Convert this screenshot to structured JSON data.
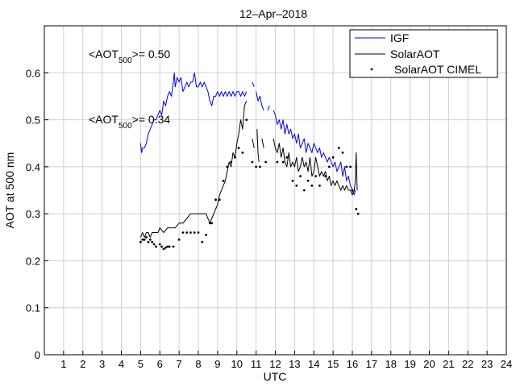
{
  "chart_data": {
    "type": "line",
    "title": "12–Apr–2018",
    "xlabel": "UTC",
    "ylabel": "AOT at 500 nm",
    "xlim": [
      0,
      24
    ],
    "ylim": [
      0,
      0.7
    ],
    "xticks": [
      "1",
      "2",
      "3",
      "4",
      "5",
      "6",
      "7",
      "8",
      "9",
      "10",
      "11",
      "12",
      "13",
      "14",
      "15",
      "16",
      "17",
      "18",
      "19",
      "20",
      "21",
      "22",
      "23",
      "24"
    ],
    "yticks": [
      "0",
      "0.1",
      "0.2",
      "0.3",
      "0.4",
      "0.5",
      "0.6"
    ],
    "grid": true,
    "legend_position": "top-right",
    "annotations": [
      {
        "prefix": "<AOT",
        "sub": "500",
        "suffix": ">= 0.50",
        "color": "#0000ee"
      },
      {
        "prefix": "<AOT",
        "sub": "500",
        "suffix": ">= 0.34",
        "color": "#000000"
      }
    ],
    "series": [
      {
        "name": "IGF",
        "style": "line",
        "color": "#0000dd",
        "segments": [
          [
            [
              5.0,
              0.45
            ],
            [
              5.05,
              0.43
            ],
            [
              5.1,
              0.44
            ],
            [
              5.2,
              0.44
            ],
            [
              5.3,
              0.45
            ],
            [
              5.4,
              0.47
            ],
            [
              5.5,
              0.48
            ],
            [
              5.6,
              0.49
            ],
            [
              5.7,
              0.5
            ],
            [
              5.8,
              0.5
            ],
            [
              5.9,
              0.51
            ],
            [
              6.0,
              0.52
            ],
            [
              6.1,
              0.51
            ],
            [
              6.2,
              0.54
            ],
            [
              6.3,
              0.53
            ],
            [
              6.4,
              0.55
            ],
            [
              6.5,
              0.56
            ],
            [
              6.6,
              0.55
            ],
            [
              6.7,
              0.58
            ],
            [
              6.75,
              0.6
            ],
            [
              6.8,
              0.57
            ],
            [
              6.9,
              0.59
            ],
            [
              7.0,
              0.58
            ],
            [
              7.1,
              0.59
            ],
            [
              7.2,
              0.56
            ],
            [
              7.3,
              0.57
            ],
            [
              7.4,
              0.58
            ],
            [
              7.5,
              0.57
            ],
            [
              7.6,
              0.58
            ],
            [
              7.7,
              0.58
            ],
            [
              7.8,
              0.6
            ],
            [
              7.9,
              0.57
            ],
            [
              8.0,
              0.57
            ],
            [
              8.1,
              0.58
            ],
            [
              8.2,
              0.57
            ],
            [
              8.3,
              0.58
            ],
            [
              8.4,
              0.57
            ],
            [
              8.5,
              0.56
            ],
            [
              8.6,
              0.54
            ],
            [
              8.7,
              0.53
            ],
            [
              8.8,
              0.55
            ],
            [
              8.9,
              0.55
            ],
            [
              9.0,
              0.56
            ],
            [
              9.1,
              0.55
            ],
            [
              9.2,
              0.56
            ],
            [
              9.3,
              0.55
            ],
            [
              9.4,
              0.56
            ],
            [
              9.5,
              0.55
            ],
            [
              9.6,
              0.56
            ],
            [
              9.7,
              0.55
            ],
            [
              9.8,
              0.56
            ],
            [
              9.9,
              0.55
            ],
            [
              10.0,
              0.56
            ],
            [
              10.1,
              0.56
            ],
            [
              10.2,
              0.55
            ],
            [
              10.3,
              0.56
            ],
            [
              10.4,
              0.55
            ],
            [
              10.5,
              0.56
            ]
          ],
          [
            [
              10.8,
              0.58
            ],
            [
              10.9,
              0.57
            ]
          ],
          [
            [
              11.0,
              0.56
            ],
            [
              11.1,
              0.54
            ],
            [
              11.2,
              0.55
            ],
            [
              11.3,
              0.53
            ],
            [
              11.4,
              0.52
            ]
          ],
          [
            [
              11.6,
              0.52
            ],
            [
              11.7,
              0.53
            ]
          ],
          [
            [
              11.9,
              0.52
            ],
            [
              12.0,
              0.51
            ],
            [
              12.1,
              0.49
            ],
            [
              12.2,
              0.5
            ],
            [
              12.3,
              0.48
            ],
            [
              12.4,
              0.5
            ],
            [
              12.5,
              0.47
            ],
            [
              12.6,
              0.49
            ],
            [
              12.7,
              0.47
            ],
            [
              12.8,
              0.48
            ],
            [
              12.9,
              0.46
            ],
            [
              13.0,
              0.47
            ],
            [
              13.1,
              0.45
            ],
            [
              13.2,
              0.47
            ],
            [
              13.3,
              0.44
            ],
            [
              13.4,
              0.45
            ],
            [
              13.5,
              0.46
            ],
            [
              13.6,
              0.43
            ],
            [
              13.7,
              0.45
            ],
            [
              13.8,
              0.44
            ],
            [
              13.9,
              0.43
            ],
            [
              14.0,
              0.45
            ],
            [
              14.1,
              0.44
            ],
            [
              14.2,
              0.43
            ],
            [
              14.3,
              0.44
            ],
            [
              14.4,
              0.42
            ],
            [
              14.5,
              0.43
            ],
            [
              14.6,
              0.42
            ],
            [
              14.7,
              0.41
            ],
            [
              14.8,
              0.42
            ],
            [
              14.9,
              0.41
            ],
            [
              15.0,
              0.4
            ],
            [
              15.1,
              0.41
            ],
            [
              15.2,
              0.39
            ],
            [
              15.3,
              0.4
            ],
            [
              15.4,
              0.41
            ],
            [
              15.5,
              0.38
            ],
            [
              15.6,
              0.4
            ],
            [
              15.7,
              0.37
            ],
            [
              15.8,
              0.38
            ],
            [
              15.9,
              0.36
            ],
            [
              16.0,
              0.35
            ],
            [
              16.1,
              0.34
            ],
            [
              16.15,
              0.35
            ]
          ]
        ]
      },
      {
        "name": "SolarAOT",
        "style": "line",
        "color": "#000000",
        "segments": [
          [
            [
              5.0,
              0.25
            ],
            [
              5.1,
              0.26
            ],
            [
              5.2,
              0.25
            ],
            [
              5.3,
              0.26
            ],
            [
              5.4,
              0.26
            ],
            [
              5.5,
              0.25
            ],
            [
              5.6,
              0.26
            ],
            [
              5.7,
              0.26
            ],
            [
              5.8,
              0.26
            ],
            [
              5.9,
              0.26
            ],
            [
              6.0,
              0.27
            ],
            [
              6.2,
              0.26
            ],
            [
              6.4,
              0.27
            ],
            [
              6.6,
              0.27
            ],
            [
              6.8,
              0.27
            ],
            [
              7.0,
              0.28
            ],
            [
              7.2,
              0.28
            ],
            [
              7.4,
              0.29
            ],
            [
              7.6,
              0.3
            ],
            [
              7.8,
              0.3
            ],
            [
              8.0,
              0.3
            ],
            [
              8.2,
              0.3
            ],
            [
              8.4,
              0.3
            ],
            [
              8.5,
              0.29
            ],
            [
              8.6,
              0.28
            ],
            [
              8.7,
              0.29
            ],
            [
              8.8,
              0.3
            ],
            [
              8.9,
              0.31
            ],
            [
              9.0,
              0.32
            ],
            [
              9.1,
              0.34
            ],
            [
              9.2,
              0.35
            ],
            [
              9.3,
              0.36
            ],
            [
              9.4,
              0.37
            ],
            [
              9.5,
              0.39
            ],
            [
              9.6,
              0.41
            ],
            [
              9.7,
              0.4
            ],
            [
              9.8,
              0.43
            ],
            [
              9.9,
              0.42
            ],
            [
              10.0,
              0.45
            ],
            [
              10.1,
              0.47
            ],
            [
              10.2,
              0.5
            ],
            [
              10.3,
              0.48
            ],
            [
              10.4,
              0.53
            ],
            [
              10.5,
              0.54
            ]
          ],
          [
            [
              10.8,
              0.46
            ],
            [
              10.85,
              0.45
            ],
            [
              10.9,
              0.44
            ]
          ],
          [
            [
              11.05,
              0.48
            ],
            [
              11.1,
              0.43
            ],
            [
              11.15,
              0.41
            ]
          ],
          [
            [
              11.3,
              0.46
            ],
            [
              11.4,
              0.44
            ]
          ],
          [
            [
              11.9,
              0.46
            ],
            [
              12.0,
              0.44
            ],
            [
              12.1,
              0.43
            ],
            [
              12.2,
              0.45
            ],
            [
              12.3,
              0.42
            ],
            [
              12.4,
              0.44
            ],
            [
              12.5,
              0.41
            ],
            [
              12.6,
              0.4
            ],
            [
              12.7,
              0.43
            ],
            [
              12.8,
              0.4
            ],
            [
              12.9,
              0.41
            ],
            [
              13.0,
              0.4
            ],
            [
              13.1,
              0.42
            ],
            [
              13.2,
              0.39
            ],
            [
              13.3,
              0.4
            ],
            [
              13.4,
              0.42
            ],
            [
              13.5,
              0.4
            ],
            [
              13.6,
              0.41
            ],
            [
              13.7,
              0.39
            ],
            [
              13.8,
              0.42
            ],
            [
              13.9,
              0.38
            ],
            [
              14.0,
              0.39
            ],
            [
              14.1,
              0.42
            ],
            [
              14.2,
              0.4
            ],
            [
              14.3,
              0.38
            ],
            [
              14.4,
              0.39
            ],
            [
              14.5,
              0.38
            ],
            [
              14.6,
              0.39
            ],
            [
              14.7,
              0.37
            ],
            [
              14.8,
              0.38
            ],
            [
              14.9,
              0.36
            ],
            [
              15.0,
              0.37
            ],
            [
              15.1,
              0.36
            ],
            [
              15.2,
              0.37
            ],
            [
              15.3,
              0.36
            ],
            [
              15.4,
              0.35
            ],
            [
              15.5,
              0.36
            ],
            [
              15.6,
              0.35
            ],
            [
              15.7,
              0.36
            ],
            [
              15.8,
              0.35
            ],
            [
              15.9,
              0.35
            ],
            [
              16.0,
              0.34
            ],
            [
              16.1,
              0.35
            ],
            [
              16.15,
              0.37
            ],
            [
              16.2,
              0.43
            ],
            [
              16.25,
              0.35
            ]
          ]
        ]
      },
      {
        "name": "SolarAOT CIMEL",
        "style": "points",
        "color": "#000000",
        "points": [
          [
            5.0,
            0.24
          ],
          [
            5.1,
            0.245
          ],
          [
            5.2,
            0.245
          ],
          [
            5.3,
            0.25
          ],
          [
            5.4,
            0.24
          ],
          [
            5.5,
            0.245
          ],
          [
            5.6,
            0.24
          ],
          [
            5.7,
            0.235
          ],
          [
            5.8,
            0.23
          ],
          [
            6.0,
            0.235
          ],
          [
            6.1,
            0.23
          ],
          [
            6.2,
            0.225
          ],
          [
            6.3,
            0.228
          ],
          [
            6.4,
            0.23
          ],
          [
            6.5,
            0.23
          ],
          [
            6.7,
            0.23
          ],
          [
            7.0,
            0.245
          ],
          [
            7.2,
            0.26
          ],
          [
            7.4,
            0.26
          ],
          [
            7.6,
            0.26
          ],
          [
            7.8,
            0.26
          ],
          [
            8.0,
            0.26
          ],
          [
            8.2,
            0.24
          ],
          [
            8.4,
            0.255
          ],
          [
            8.6,
            0.28
          ],
          [
            8.7,
            0.28
          ],
          [
            8.9,
            0.33
          ],
          [
            9.1,
            0.33
          ],
          [
            9.3,
            0.37
          ],
          [
            9.5,
            0.4
          ],
          [
            9.7,
            0.41
          ],
          [
            9.9,
            0.42
          ],
          [
            10.1,
            0.44
          ],
          [
            10.3,
            0.43
          ],
          [
            10.5,
            0.5
          ],
          [
            10.8,
            0.41
          ],
          [
            11.0,
            0.4
          ],
          [
            11.2,
            0.4
          ],
          [
            11.5,
            0.41
          ],
          [
            12.1,
            0.41
          ],
          [
            12.4,
            0.41
          ],
          [
            12.6,
            0.42
          ],
          [
            12.9,
            0.37
          ],
          [
            13.1,
            0.36
          ],
          [
            13.3,
            0.38
          ],
          [
            13.5,
            0.35
          ],
          [
            13.7,
            0.37
          ],
          [
            13.9,
            0.36
          ],
          [
            14.1,
            0.38
          ],
          [
            14.3,
            0.36
          ],
          [
            14.6,
            0.38
          ],
          [
            14.8,
            0.4
          ],
          [
            15.0,
            0.42
          ],
          [
            15.3,
            0.44
          ],
          [
            15.5,
            0.43
          ],
          [
            15.7,
            0.4
          ],
          [
            15.9,
            0.4
          ],
          [
            16.0,
            0.35
          ],
          [
            16.2,
            0.31
          ],
          [
            16.3,
            0.3
          ]
        ]
      }
    ]
  }
}
